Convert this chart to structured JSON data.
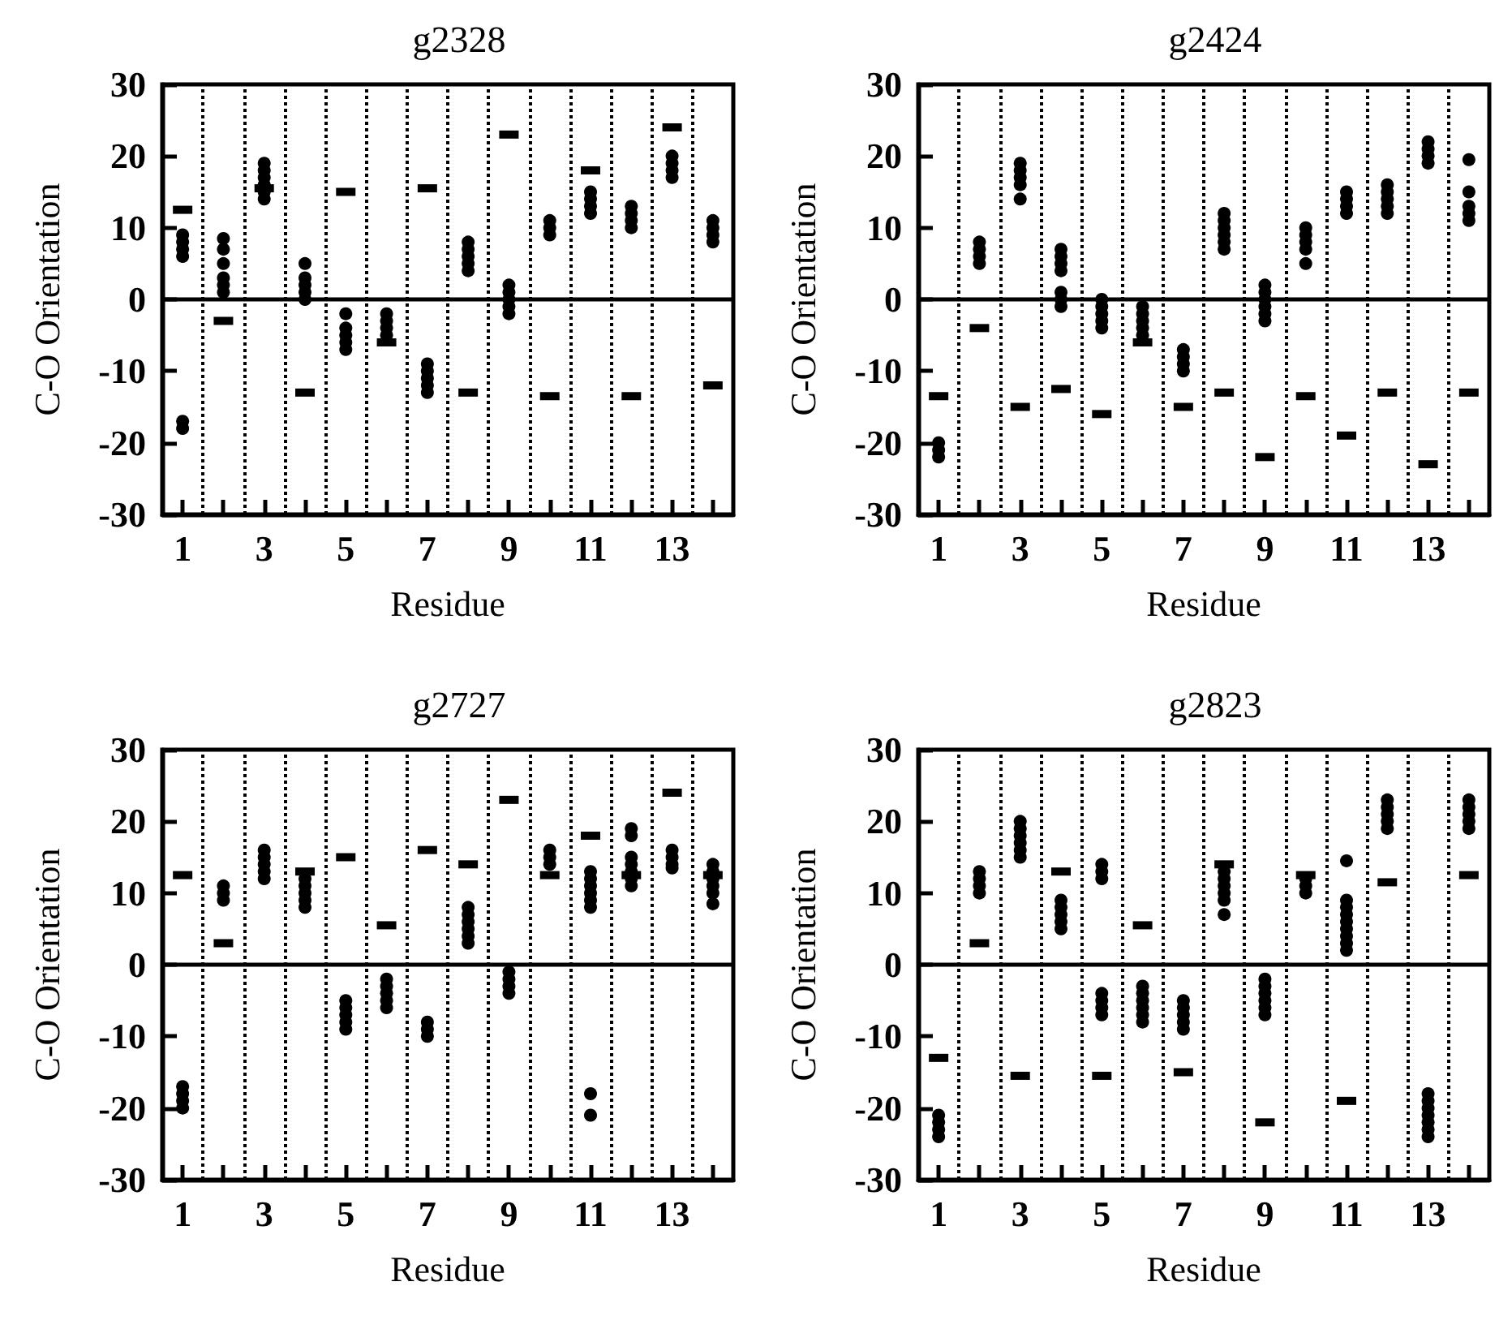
{
  "chart_data": [
    {
      "type": "scatter",
      "title": "g2328",
      "xlabel": "Residue",
      "ylabel": "C-O Orientation",
      "xlim": [
        0.5,
        14.5
      ],
      "ylim": [
        -30,
        30
      ],
      "xticks": [
        1,
        {
          "value": 2,
          "label": null
        },
        3,
        {
          "value": 4,
          "label": null
        },
        5,
        {
          "value": 6,
          "label": null
        },
        7,
        {
          "value": 8,
          "label": null
        },
        9,
        {
          "value": 10,
          "label": null
        },
        11,
        {
          "value": 12,
          "label": null
        },
        13,
        {
          "value": 14,
          "label": null
        }
      ],
      "yticks": [
        -30,
        -20,
        -10,
        0,
        10,
        20,
        30
      ],
      "grid": false,
      "ref_lines": [
        {
          "axis": "y",
          "value": 0,
          "line_style": "solid"
        },
        {
          "axis": "x",
          "value": 1.5,
          "line_style": "dotted"
        },
        {
          "axis": "x",
          "value": 2.5,
          "line_style": "dotted"
        },
        {
          "axis": "x",
          "value": 3.5,
          "line_style": "dotted"
        },
        {
          "axis": "x",
          "value": 4.5,
          "line_style": "dotted"
        },
        {
          "axis": "x",
          "value": 5.5,
          "line_style": "dotted"
        },
        {
          "axis": "x",
          "value": 6.5,
          "line_style": "dotted"
        },
        {
          "axis": "x",
          "value": 7.5,
          "line_style": "dotted"
        },
        {
          "axis": "x",
          "value": 8.5,
          "line_style": "dotted"
        },
        {
          "axis": "x",
          "value": 9.5,
          "line_style": "dotted"
        },
        {
          "axis": "x",
          "value": 10.5,
          "line_style": "dotted"
        },
        {
          "axis": "x",
          "value": 11.5,
          "line_style": "dotted"
        },
        {
          "axis": "x",
          "value": 12.5,
          "line_style": "dotted"
        },
        {
          "axis": "x",
          "value": 13.5,
          "line_style": "dotted"
        }
      ],
      "series": [
        {
          "color": "#000000",
          "marker": "circle",
          "x": [
            1,
            1,
            1,
            1,
            1,
            1,
            2,
            2,
            2,
            2,
            2,
            2,
            3,
            3,
            3,
            3,
            3,
            3,
            4,
            4,
            4,
            4,
            4,
            5,
            5,
            5,
            5,
            5,
            6,
            6,
            6,
            6,
            7,
            7,
            7,
            7,
            7,
            8,
            8,
            8,
            8,
            8,
            9,
            9,
            9,
            9,
            9,
            10,
            10,
            10,
            11,
            11,
            11,
            11,
            12,
            12,
            12,
            12,
            13,
            13,
            13,
            13,
            14,
            14,
            14,
            14
          ],
          "values": [
            9,
            8,
            7,
            6,
            -17,
            -18,
            8.5,
            7,
            5,
            3,
            2,
            1,
            19,
            18,
            17,
            16,
            15,
            14,
            5,
            3,
            2,
            1,
            0,
            -2,
            -4,
            -5,
            -6,
            -7,
            -2,
            -3,
            -4,
            -5,
            -9,
            -10,
            -11,
            -12,
            -13,
            8,
            7,
            6,
            5,
            4,
            2,
            1,
            0,
            -1,
            -2,
            11,
            10,
            9,
            15,
            14,
            13,
            12,
            13,
            12,
            11,
            10,
            20,
            19,
            18,
            17,
            11,
            10,
            9,
            8
          ]
        },
        {
          "color": "#000000",
          "marker": "square",
          "x": [
            1,
            2,
            3,
            4,
            5,
            6,
            7,
            8,
            9,
            10,
            11,
            12,
            13,
            14
          ],
          "values": [
            12.5,
            -3,
            15.5,
            -13,
            15,
            -6,
            15.5,
            -13,
            23,
            -13.5,
            18,
            -13.5,
            24,
            -12
          ]
        }
      ]
    },
    {
      "type": "scatter",
      "title": "g2424",
      "xlabel": "Residue",
      "ylabel": "C-O Orientation",
      "xlim": [
        0.5,
        14.5
      ],
      "ylim": [
        -30,
        30
      ],
      "xticks": [
        1,
        {
          "value": 2,
          "label": null
        },
        3,
        {
          "value": 4,
          "label": null
        },
        5,
        {
          "value": 6,
          "label": null
        },
        7,
        {
          "value": 8,
          "label": null
        },
        9,
        {
          "value": 10,
          "label": null
        },
        11,
        {
          "value": 12,
          "label": null
        },
        13,
        {
          "value": 14,
          "label": null
        }
      ],
      "yticks": [
        -30,
        -20,
        -10,
        0,
        10,
        20,
        30
      ],
      "grid": false,
      "ref_lines": [
        {
          "axis": "y",
          "value": 0,
          "line_style": "solid"
        },
        {
          "axis": "x",
          "value": 1.5,
          "line_style": "dotted"
        },
        {
          "axis": "x",
          "value": 2.5,
          "line_style": "dotted"
        },
        {
          "axis": "x",
          "value": 3.5,
          "line_style": "dotted"
        },
        {
          "axis": "x",
          "value": 4.5,
          "line_style": "dotted"
        },
        {
          "axis": "x",
          "value": 5.5,
          "line_style": "dotted"
        },
        {
          "axis": "x",
          "value": 6.5,
          "line_style": "dotted"
        },
        {
          "axis": "x",
          "value": 7.5,
          "line_style": "dotted"
        },
        {
          "axis": "x",
          "value": 8.5,
          "line_style": "dotted"
        },
        {
          "axis": "x",
          "value": 9.5,
          "line_style": "dotted"
        },
        {
          "axis": "x",
          "value": 10.5,
          "line_style": "dotted"
        },
        {
          "axis": "x",
          "value": 11.5,
          "line_style": "dotted"
        },
        {
          "axis": "x",
          "value": 12.5,
          "line_style": "dotted"
        },
        {
          "axis": "x",
          "value": 13.5,
          "line_style": "dotted"
        }
      ],
      "series": [
        {
          "color": "#000000",
          "marker": "circle",
          "x": [
            1,
            1,
            1,
            2,
            2,
            2,
            2,
            3,
            3,
            3,
            3,
            3,
            4,
            4,
            4,
            4,
            4,
            4,
            4,
            5,
            5,
            5,
            5,
            5,
            6,
            6,
            6,
            6,
            6,
            7,
            7,
            7,
            7,
            8,
            8,
            8,
            8,
            8,
            8,
            9,
            9,
            9,
            9,
            9,
            9,
            10,
            10,
            10,
            10,
            10,
            11,
            11,
            11,
            11,
            12,
            12,
            12,
            12,
            12,
            13,
            13,
            13,
            13,
            14,
            14,
            14,
            14,
            14
          ],
          "values": [
            -20,
            -21,
            -22,
            8,
            7,
            6,
            5,
            19,
            18,
            17,
            16,
            14,
            7,
            6,
            5,
            4,
            1,
            0,
            -1,
            0,
            -1,
            -2,
            -3,
            -4,
            -1,
            -2,
            -3,
            -4,
            -5,
            -7,
            -8,
            -9,
            -10,
            12,
            11,
            10,
            9,
            8,
            7,
            2,
            1,
            0,
            -1,
            -2,
            -3,
            10,
            9,
            8,
            7,
            5,
            15,
            14,
            13,
            12,
            16,
            15,
            14,
            13,
            12,
            22,
            21,
            20,
            19,
            19.5,
            15,
            13,
            12,
            11
          ]
        },
        {
          "color": "#000000",
          "marker": "square",
          "x": [
            1,
            2,
            3,
            4,
            5,
            6,
            7,
            8,
            9,
            10,
            11,
            12,
            13,
            14
          ],
          "values": [
            -13.5,
            -4,
            -15,
            -12.5,
            -16,
            -6,
            -15,
            -13,
            -22,
            -13.5,
            -19,
            -13,
            -23,
            -13
          ]
        }
      ]
    },
    {
      "type": "scatter",
      "title": "g2727",
      "xlabel": "Residue",
      "ylabel": "C-O Orientation",
      "xlim": [
        0.5,
        14.5
      ],
      "ylim": [
        -30,
        30
      ],
      "xticks": [
        1,
        {
          "value": 2,
          "label": null
        },
        3,
        {
          "value": 4,
          "label": null
        },
        5,
        {
          "value": 6,
          "label": null
        },
        7,
        {
          "value": 8,
          "label": null
        },
        9,
        {
          "value": 10,
          "label": null
        },
        11,
        {
          "value": 12,
          "label": null
        },
        13,
        {
          "value": 14,
          "label": null
        }
      ],
      "yticks": [
        -30,
        -20,
        -10,
        0,
        10,
        20,
        30
      ],
      "grid": false,
      "ref_lines": [
        {
          "axis": "y",
          "value": 0,
          "line_style": "solid"
        },
        {
          "axis": "x",
          "value": 1.5,
          "line_style": "dotted"
        },
        {
          "axis": "x",
          "value": 2.5,
          "line_style": "dotted"
        },
        {
          "axis": "x",
          "value": 3.5,
          "line_style": "dotted"
        },
        {
          "axis": "x",
          "value": 4.5,
          "line_style": "dotted"
        },
        {
          "axis": "x",
          "value": 5.5,
          "line_style": "dotted"
        },
        {
          "axis": "x",
          "value": 6.5,
          "line_style": "dotted"
        },
        {
          "axis": "x",
          "value": 7.5,
          "line_style": "dotted"
        },
        {
          "axis": "x",
          "value": 8.5,
          "line_style": "dotted"
        },
        {
          "axis": "x",
          "value": 9.5,
          "line_style": "dotted"
        },
        {
          "axis": "x",
          "value": 10.5,
          "line_style": "dotted"
        },
        {
          "axis": "x",
          "value": 11.5,
          "line_style": "dotted"
        },
        {
          "axis": "x",
          "value": 12.5,
          "line_style": "dotted"
        },
        {
          "axis": "x",
          "value": 13.5,
          "line_style": "dotted"
        }
      ],
      "series": [
        {
          "color": "#000000",
          "marker": "circle",
          "x": [
            1,
            1,
            1,
            1,
            2,
            2,
            2,
            3,
            3,
            3,
            3,
            3,
            4,
            4,
            4,
            4,
            4,
            5,
            5,
            5,
            5,
            5,
            6,
            6,
            6,
            6,
            6,
            7,
            7,
            7,
            8,
            8,
            8,
            8,
            8,
            8,
            9,
            9,
            9,
            9,
            10,
            10,
            10,
            11,
            11,
            11,
            11,
            11,
            11,
            11,
            11,
            12,
            12,
            12,
            12,
            12,
            12,
            12,
            13,
            13,
            13,
            13,
            14,
            14,
            14,
            14,
            14,
            14
          ],
          "values": [
            -17,
            -18,
            -19,
            -20,
            11,
            10,
            9,
            16,
            15,
            14,
            13,
            12,
            12,
            11,
            10,
            9,
            8,
            -5,
            -6,
            -7,
            -8,
            -9,
            -2,
            -3,
            -4,
            -5,
            -6,
            -8,
            -9,
            -10,
            8,
            7,
            6,
            5,
            4,
            3,
            -1,
            -2,
            -3,
            -4,
            16,
            15,
            14,
            13,
            12,
            11,
            10,
            9,
            8,
            -18,
            -21,
            19,
            18,
            15,
            14,
            13,
            12,
            11,
            16,
            15,
            14,
            13.5,
            14,
            13,
            12,
            11,
            10,
            8.5
          ]
        },
        {
          "color": "#000000",
          "marker": "square",
          "x": [
            1,
            2,
            4,
            5,
            6,
            7,
            8,
            9,
            10,
            11,
            12,
            13,
            14
          ],
          "values": [
            12.5,
            3,
            13,
            15,
            5.5,
            16,
            14,
            23,
            12.5,
            18,
            12.5,
            24,
            12.5
          ]
        }
      ]
    },
    {
      "type": "scatter",
      "title": "g2823",
      "xlabel": "Residue",
      "ylabel": "C-O Orientation",
      "xlim": [
        0.5,
        14.5
      ],
      "ylim": [
        -30,
        30
      ],
      "xticks": [
        1,
        {
          "value": 2,
          "label": null
        },
        3,
        {
          "value": 4,
          "label": null
        },
        5,
        {
          "value": 6,
          "label": null
        },
        7,
        {
          "value": 8,
          "label": null
        },
        9,
        {
          "value": 10,
          "label": null
        },
        11,
        {
          "value": 12,
          "label": null
        },
        13,
        {
          "value": 14,
          "label": null
        }
      ],
      "yticks": [
        -30,
        -20,
        -10,
        0,
        10,
        20,
        30
      ],
      "grid": false,
      "ref_lines": [
        {
          "axis": "y",
          "value": 0,
          "line_style": "solid"
        },
        {
          "axis": "x",
          "value": 1.5,
          "line_style": "dotted"
        },
        {
          "axis": "x",
          "value": 2.5,
          "line_style": "dotted"
        },
        {
          "axis": "x",
          "value": 3.5,
          "line_style": "dotted"
        },
        {
          "axis": "x",
          "value": 4.5,
          "line_style": "dotted"
        },
        {
          "axis": "x",
          "value": 5.5,
          "line_style": "dotted"
        },
        {
          "axis": "x",
          "value": 6.5,
          "line_style": "dotted"
        },
        {
          "axis": "x",
          "value": 7.5,
          "line_style": "dotted"
        },
        {
          "axis": "x",
          "value": 8.5,
          "line_style": "dotted"
        },
        {
          "axis": "x",
          "value": 9.5,
          "line_style": "dotted"
        },
        {
          "axis": "x",
          "value": 10.5,
          "line_style": "dotted"
        },
        {
          "axis": "x",
          "value": 11.5,
          "line_style": "dotted"
        },
        {
          "axis": "x",
          "value": 12.5,
          "line_style": "dotted"
        },
        {
          "axis": "x",
          "value": 13.5,
          "line_style": "dotted"
        }
      ],
      "series": [
        {
          "color": "#000000",
          "marker": "circle",
          "x": [
            1,
            1,
            1,
            1,
            2,
            2,
            2,
            2,
            3,
            3,
            3,
            3,
            3,
            3,
            4,
            4,
            4,
            4,
            4,
            5,
            5,
            5,
            5,
            5,
            5,
            5,
            6,
            6,
            6,
            6,
            6,
            6,
            7,
            7,
            7,
            7,
            7,
            8,
            8,
            8,
            8,
            8,
            8,
            9,
            9,
            9,
            9,
            9,
            9,
            10,
            10,
            10,
            11,
            11,
            11,
            11,
            11,
            11,
            11,
            11,
            11,
            12,
            12,
            12,
            12,
            12,
            13,
            13,
            13,
            13,
            13,
            13,
            13,
            14,
            14,
            14,
            14,
            14
          ],
          "values": [
            -21,
            -22,
            -23,
            -24,
            13,
            12,
            11,
            10,
            20,
            19,
            18,
            17,
            16,
            15,
            9,
            8,
            7,
            6,
            5,
            14,
            13,
            12,
            -4,
            -5,
            -6,
            -7,
            -3,
            -4,
            -5,
            -6,
            -7,
            -8,
            -5,
            -6,
            -7,
            -8,
            -9,
            13,
            12,
            11,
            10,
            9,
            7,
            -2,
            -3,
            -4,
            -5,
            -6,
            -7,
            12,
            11,
            10,
            14.5,
            9,
            8,
            7,
            6,
            5,
            4,
            3,
            2,
            23,
            22,
            21,
            20,
            19,
            -18,
            -19,
            -20,
            -21,
            -22,
            -23,
            -24,
            23,
            22,
            21,
            20,
            19
          ]
        },
        {
          "color": "#000000",
          "marker": "square",
          "x": [
            1,
            2,
            3,
            4,
            5,
            6,
            7,
            8,
            9,
            10,
            11,
            12,
            13,
            14
          ],
          "values": [
            -13,
            3,
            -15.5,
            13,
            -15.5,
            5.5,
            -15,
            14,
            -22,
            12.5,
            -19,
            11.5,
            null,
            12.5
          ]
        }
      ]
    }
  ]
}
